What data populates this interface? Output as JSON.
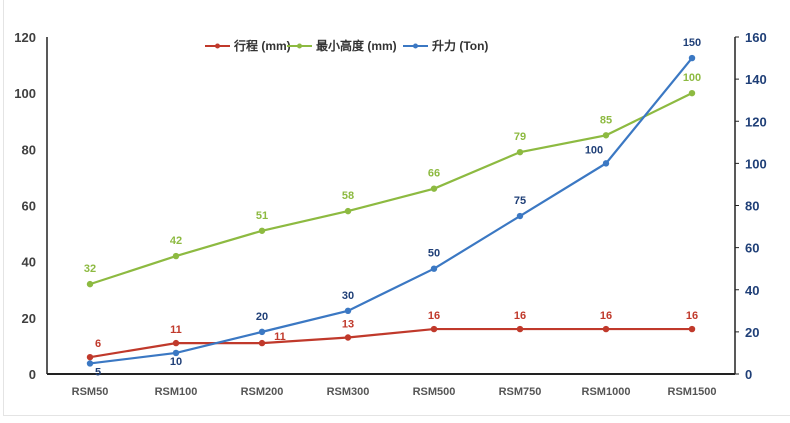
{
  "chart_data": {
    "type": "line",
    "title": "",
    "categories": [
      "RSM50",
      "RSM100",
      "RSM200",
      "RSM300",
      "RSM500",
      "RSM750",
      "RSM1000",
      "RSM1500"
    ],
    "y_left": {
      "ylim": [
        0,
        120
      ],
      "ticks": [
        0,
        20,
        40,
        60,
        80,
        100,
        120
      ]
    },
    "y_right": {
      "ylim": [
        0,
        160
      ],
      "ticks": [
        0,
        20,
        40,
        60,
        80,
        100,
        120,
        140,
        160
      ]
    },
    "legend_position": "top",
    "series": [
      {
        "name": "行程 (mm)",
        "axis": "left",
        "color": "#c0392b",
        "values": [
          6,
          11,
          11,
          13,
          16,
          16,
          16,
          16
        ]
      },
      {
        "name": "最小高度 (mm)",
        "axis": "left",
        "color": "#8dba41",
        "values": [
          32,
          42,
          51,
          58,
          66,
          79,
          85,
          100
        ]
      },
      {
        "name": "升力 (Ton)",
        "axis": "right",
        "color": "#3b78c3",
        "values": [
          5,
          10,
          20,
          30,
          50,
          75,
          100,
          150
        ]
      }
    ],
    "colors": {
      "left_axis_text": "#404040",
      "right_axis_text": "#1f3f77"
    }
  }
}
